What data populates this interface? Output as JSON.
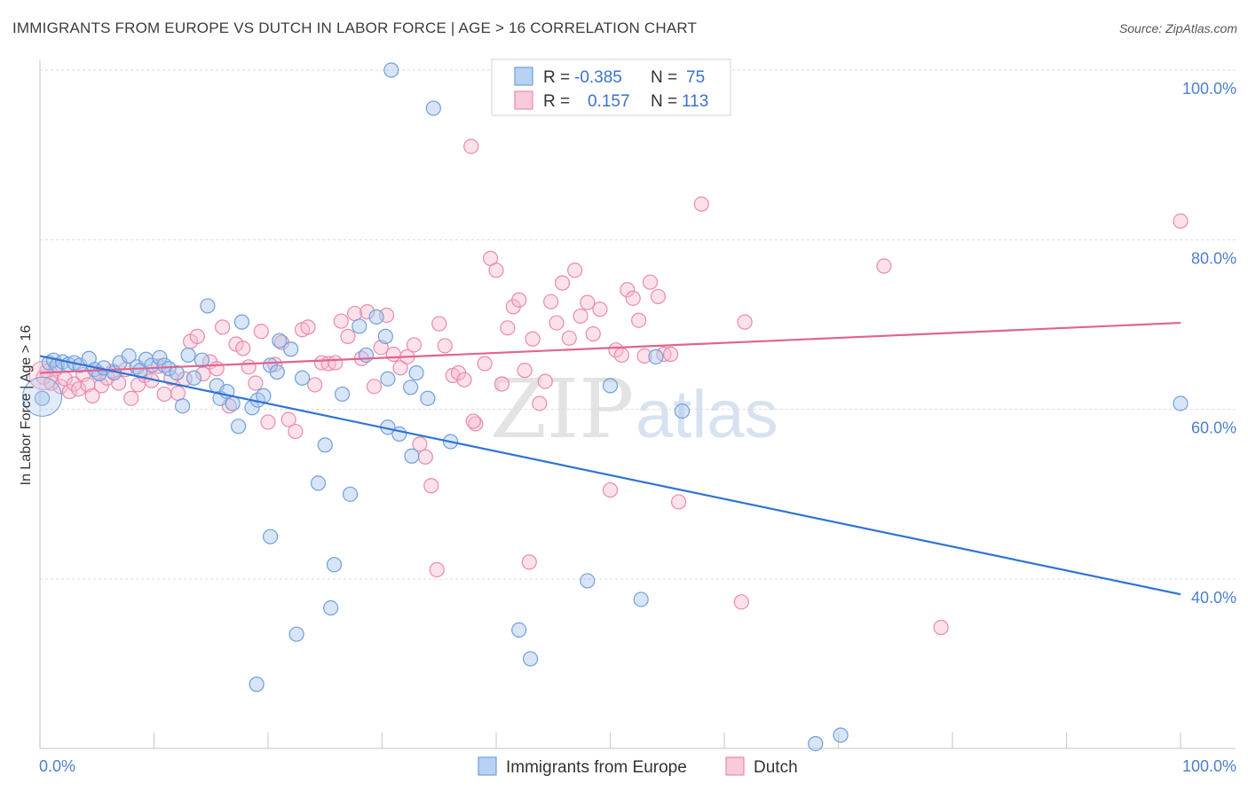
{
  "header": {
    "title": "IMMIGRANTS FROM EUROPE VS DUTCH IN LABOR FORCE | AGE > 16 CORRELATION CHART",
    "source": "Source: ZipAtlas.com"
  },
  "watermark": {
    "zip": "ZIP",
    "atlas": "atlas"
  },
  "legend": {
    "r_label": "R =",
    "n_label": "N =",
    "series1": {
      "r": "-0.385",
      "n": "75"
    },
    "series2": {
      "r": "0.157",
      "n": "113"
    }
  },
  "bottom_legend": {
    "series1": "Immigrants from Europe",
    "series2": "Dutch"
  },
  "colors": {
    "blue_fill": "#a9c6ee",
    "blue_stroke": "#6f9fdc",
    "blue_line": "#2e74d4",
    "pink_fill": "#f6bcd0",
    "pink_stroke": "#eb8aaa",
    "pink_line": "#e0648e",
    "grid": "#d9d9d9",
    "axis_text": "#4a7fcf"
  },
  "chart_data": {
    "type": "scatter",
    "title": "IMMIGRANTS FROM EUROPE VS DUTCH IN LABOR FORCE | AGE > 16 CORRELATION CHART",
    "xlabel": "",
    "ylabel": "In Labor Force | Age > 16",
    "xlim": [
      0,
      100
    ],
    "ylim": [
      20,
      102
    ],
    "x_tick_labels": [
      "0.0%",
      "100.0%"
    ],
    "y_ticks": [
      40,
      60,
      80,
      100
    ],
    "y_tick_labels": [
      "40.0%",
      "60.0%",
      "80.0%",
      "100.0%"
    ],
    "grid": true,
    "legend_position": "top-center",
    "series": [
      {
        "name": "Immigrants from Europe",
        "R": -0.385,
        "N": 75,
        "trend": {
          "x": [
            0,
            100
          ],
          "y": [
            66.3,
            38.2
          ]
        },
        "points": [
          [
            0.2,
            61.3
          ],
          [
            0.8,
            65.5
          ],
          [
            1.2,
            65.8
          ],
          [
            1.5,
            65.2
          ],
          [
            2.0,
            65.6
          ],
          [
            2.5,
            65.3
          ],
          [
            3.0,
            65.5
          ],
          [
            3.5,
            65.2
          ],
          [
            4.3,
            66.0
          ],
          [
            4.8,
            64.7
          ],
          [
            5.2,
            64.2
          ],
          [
            5.6,
            64.9
          ],
          [
            6.5,
            64.3
          ],
          [
            7.0,
            65.5
          ],
          [
            7.8,
            66.3
          ],
          [
            8.5,
            65.0
          ],
          [
            8.8,
            64.6
          ],
          [
            9.3,
            65.9
          ],
          [
            9.8,
            65.2
          ],
          [
            10.5,
            66.1
          ],
          [
            10.9,
            65.2
          ],
          [
            11.3,
            64.8
          ],
          [
            12.0,
            64.3
          ],
          [
            12.5,
            60.4
          ],
          [
            13.0,
            66.4
          ],
          [
            13.5,
            63.7
          ],
          [
            14.2,
            65.8
          ],
          [
            14.7,
            72.2
          ],
          [
            15.5,
            62.8
          ],
          [
            15.8,
            61.3
          ],
          [
            16.4,
            62.1
          ],
          [
            16.9,
            60.7
          ],
          [
            17.4,
            58.0
          ],
          [
            17.7,
            70.3
          ],
          [
            18.6,
            60.2
          ],
          [
            19.1,
            61.1
          ],
          [
            19.6,
            61.6
          ],
          [
            20.2,
            65.2
          ],
          [
            20.8,
            64.4
          ],
          [
            21.0,
            68.1
          ],
          [
            22.0,
            67.1
          ],
          [
            23.0,
            63.7
          ],
          [
            24.4,
            51.3
          ],
          [
            25.0,
            55.8
          ],
          [
            25.5,
            36.6
          ],
          [
            25.8,
            41.7
          ],
          [
            26.5,
            61.8
          ],
          [
            27.2,
            50.0
          ],
          [
            28.0,
            69.8
          ],
          [
            28.6,
            66.4
          ],
          [
            29.5,
            70.9
          ],
          [
            30.3,
            68.6
          ],
          [
            30.5,
            63.6
          ],
          [
            30.8,
            100.0
          ],
          [
            31.5,
            57.1
          ],
          [
            32.5,
            62.6
          ],
          [
            33.0,
            64.3
          ],
          [
            34.0,
            61.3
          ],
          [
            34.5,
            95.5
          ],
          [
            36.0,
            56.2
          ],
          [
            20.2,
            45.0
          ],
          [
            22.5,
            33.5
          ],
          [
            19.0,
            27.6
          ],
          [
            30.5,
            57.9
          ],
          [
            32.6,
            54.5
          ],
          [
            42.0,
            34.0
          ],
          [
            43.0,
            30.6
          ],
          [
            48.0,
            39.8
          ],
          [
            50.0,
            62.8
          ],
          [
            52.7,
            37.6
          ],
          [
            54.0,
            66.2
          ],
          [
            56.3,
            59.8
          ],
          [
            68.0,
            20.6
          ],
          [
            70.2,
            21.6
          ],
          [
            100.0,
            60.7
          ]
        ]
      },
      {
        "name": "Dutch",
        "R": 0.157,
        "N": 113,
        "trend": {
          "x": [
            0,
            100
          ],
          "y": [
            64.3,
            70.2
          ]
        },
        "points": [
          [
            0.3,
            63.8
          ],
          [
            0.6,
            64.5
          ],
          [
            1.0,
            63.1
          ],
          [
            1.4,
            64.8
          ],
          [
            1.8,
            62.7
          ],
          [
            2.2,
            63.6
          ],
          [
            2.6,
            62.1
          ],
          [
            3.0,
            63.0
          ],
          [
            3.4,
            62.4
          ],
          [
            3.8,
            64.1
          ],
          [
            4.2,
            62.9
          ],
          [
            4.6,
            61.6
          ],
          [
            5.0,
            64.4
          ],
          [
            5.4,
            62.8
          ],
          [
            5.9,
            63.7
          ],
          [
            6.4,
            64.5
          ],
          [
            6.9,
            63.1
          ],
          [
            7.5,
            64.7
          ],
          [
            8.0,
            61.3
          ],
          [
            8.6,
            62.9
          ],
          [
            9.2,
            64.0
          ],
          [
            9.8,
            63.4
          ],
          [
            10.4,
            65.1
          ],
          [
            10.9,
            61.8
          ],
          [
            11.5,
            63.7
          ],
          [
            12.1,
            61.9
          ],
          [
            12.7,
            63.6
          ],
          [
            13.2,
            68.0
          ],
          [
            13.8,
            68.6
          ],
          [
            14.3,
            64.2
          ],
          [
            14.9,
            65.6
          ],
          [
            15.5,
            64.8
          ],
          [
            16.0,
            69.7
          ],
          [
            16.6,
            60.4
          ],
          [
            17.2,
            67.7
          ],
          [
            17.8,
            67.2
          ],
          [
            18.3,
            65.0
          ],
          [
            18.9,
            63.1
          ],
          [
            19.4,
            69.2
          ],
          [
            20.0,
            58.5
          ],
          [
            20.6,
            65.3
          ],
          [
            21.2,
            67.9
          ],
          [
            21.8,
            58.8
          ],
          [
            22.4,
            57.4
          ],
          [
            23.0,
            69.4
          ],
          [
            23.5,
            69.7
          ],
          [
            24.1,
            62.9
          ],
          [
            24.7,
            65.5
          ],
          [
            25.3,
            65.4
          ],
          [
            25.9,
            65.5
          ],
          [
            26.4,
            70.4
          ],
          [
            27.0,
            68.6
          ],
          [
            27.6,
            71.3
          ],
          [
            28.2,
            66.0
          ],
          [
            28.7,
            71.5
          ],
          [
            29.3,
            62.7
          ],
          [
            29.9,
            67.3
          ],
          [
            30.4,
            71.1
          ],
          [
            31.0,
            66.5
          ],
          [
            31.6,
            64.9
          ],
          [
            32.2,
            66.2
          ],
          [
            32.8,
            67.6
          ],
          [
            33.3,
            55.9
          ],
          [
            33.8,
            54.4
          ],
          [
            34.3,
            51.0
          ],
          [
            35.0,
            70.1
          ],
          [
            35.5,
            67.5
          ],
          [
            36.2,
            64.0
          ],
          [
            36.7,
            64.3
          ],
          [
            37.2,
            63.5
          ],
          [
            37.8,
            91.0
          ],
          [
            38.2,
            58.3
          ],
          [
            39.0,
            65.4
          ],
          [
            39.5,
            77.8
          ],
          [
            40.0,
            76.4
          ],
          [
            40.5,
            63.0
          ],
          [
            41.0,
            69.6
          ],
          [
            41.5,
            72.1
          ],
          [
            42.0,
            72.9
          ],
          [
            42.5,
            64.6
          ],
          [
            43.2,
            68.3
          ],
          [
            43.8,
            60.7
          ],
          [
            44.3,
            63.3
          ],
          [
            44.8,
            72.7
          ],
          [
            45.3,
            70.2
          ],
          [
            45.8,
            74.9
          ],
          [
            46.4,
            68.4
          ],
          [
            46.9,
            76.4
          ],
          [
            47.4,
            71.0
          ],
          [
            48.0,
            72.6
          ],
          [
            48.5,
            68.9
          ],
          [
            49.1,
            71.8
          ],
          [
            50.0,
            50.5
          ],
          [
            50.5,
            67.0
          ],
          [
            51.0,
            66.4
          ],
          [
            51.5,
            74.1
          ],
          [
            52.0,
            73.1
          ],
          [
            52.5,
            70.5
          ],
          [
            53.0,
            66.3
          ],
          [
            53.5,
            75.0
          ],
          [
            54.2,
            73.3
          ],
          [
            54.7,
            66.5
          ],
          [
            55.3,
            66.5
          ],
          [
            38.0,
            58.6
          ],
          [
            42.9,
            42.0
          ],
          [
            56.0,
            49.1
          ],
          [
            58.0,
            84.2
          ],
          [
            61.5,
            37.3
          ],
          [
            74.0,
            76.9
          ],
          [
            79.0,
            34.3
          ],
          [
            100.0,
            82.2
          ],
          [
            34.8,
            41.1
          ],
          [
            61.8,
            70.3
          ]
        ]
      }
    ]
  }
}
